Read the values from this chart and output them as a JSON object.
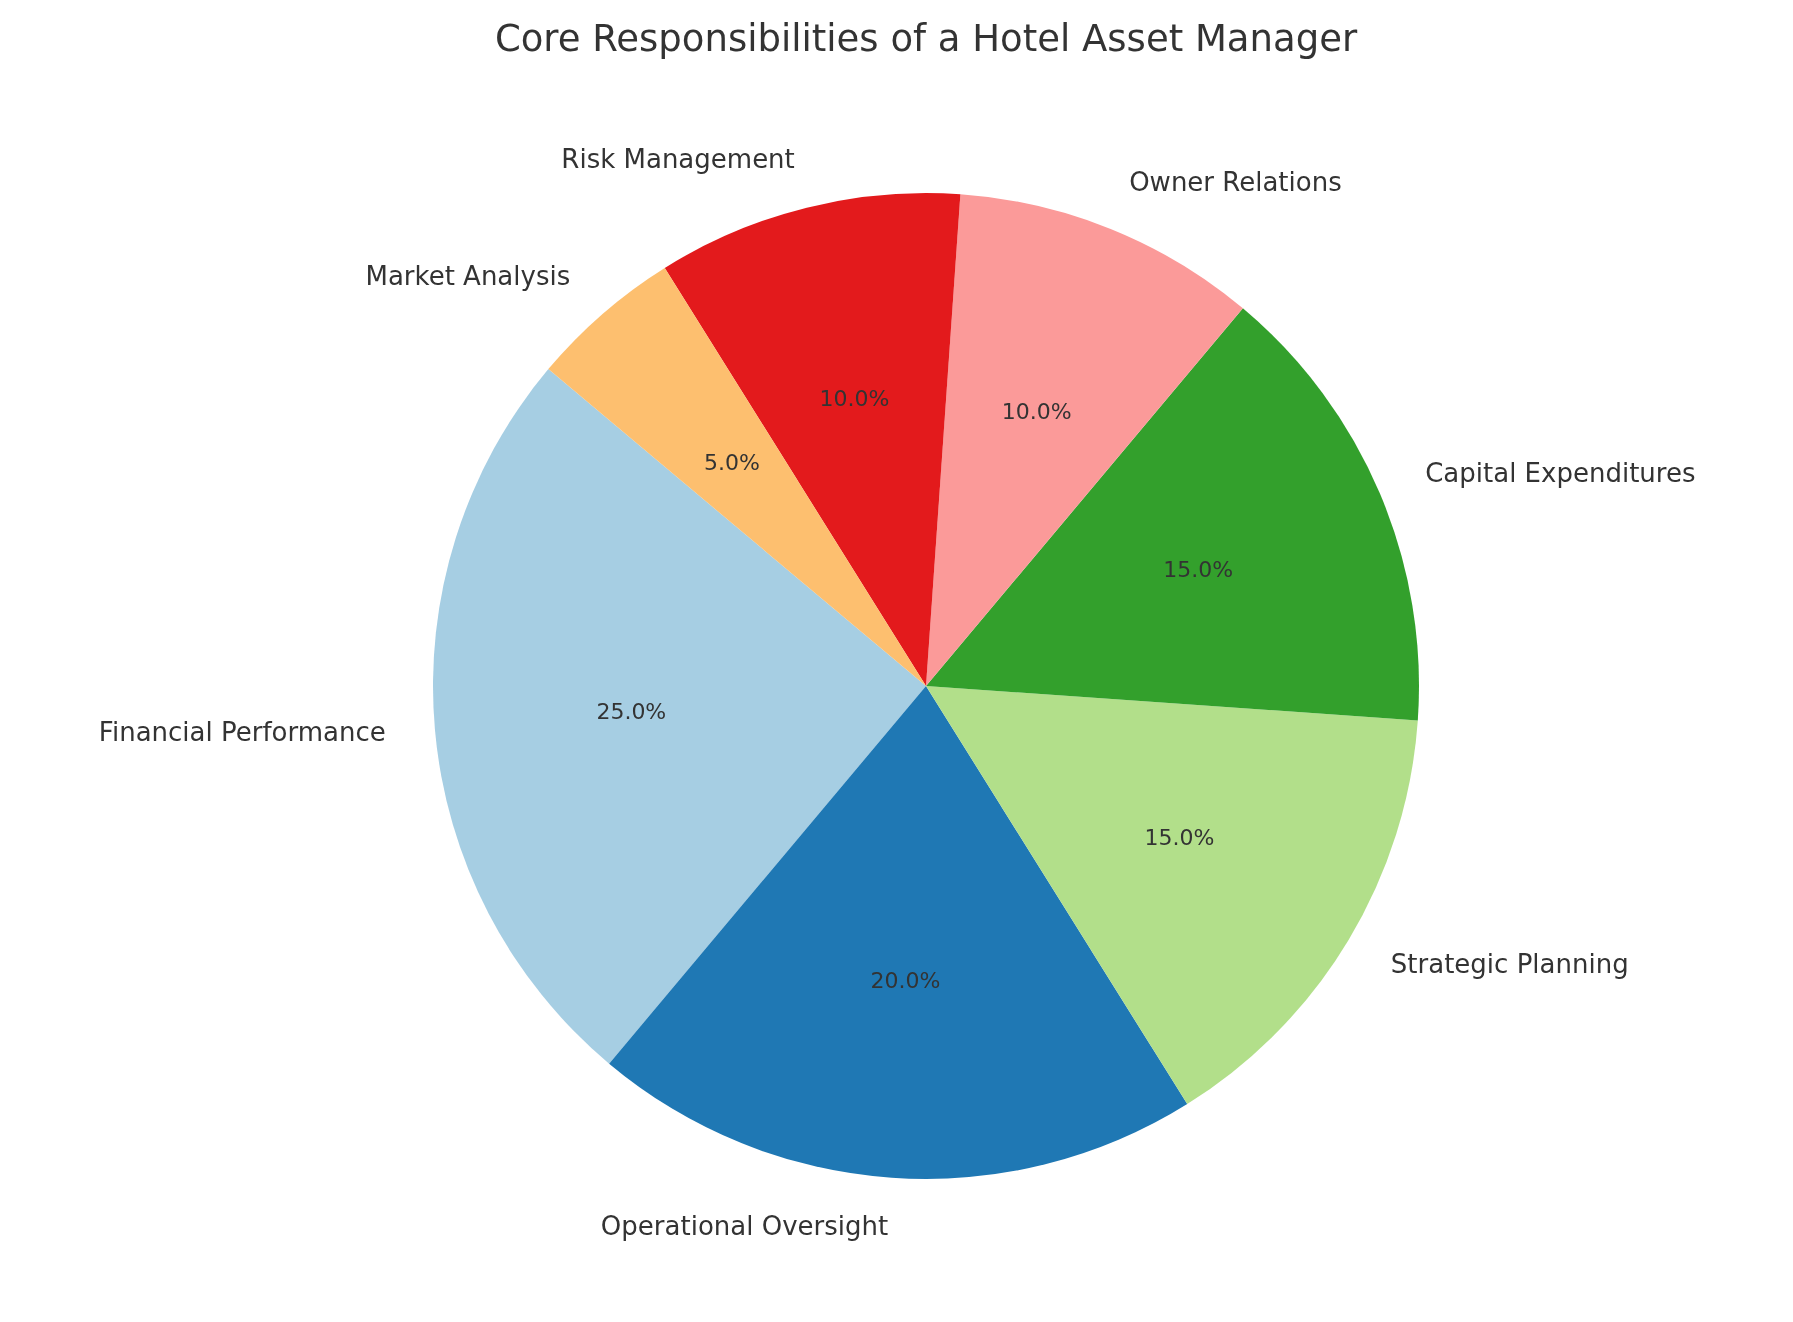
{
  "chart_data": {
    "type": "pie",
    "title": "Core Responsibilities of a Hotel Asset Manager",
    "categories": [
      "Financial Performance",
      "Operational Oversight",
      "Strategic Planning",
      "Capital Expenditures",
      "Owner Relations",
      "Risk Management",
      "Market Analysis"
    ],
    "values": [
      25,
      20,
      15,
      15,
      10,
      10,
      5
    ],
    "value_labels": [
      "25.0%",
      "20.0%",
      "15.0%",
      "15.0%",
      "10.0%",
      "10.0%",
      "5.0%"
    ],
    "colors": [
      "#a6cee3",
      "#1f78b4",
      "#b2df8a",
      "#33a02c",
      "#fb9a99",
      "#e31a1c",
      "#fdbf6f"
    ]
  }
}
